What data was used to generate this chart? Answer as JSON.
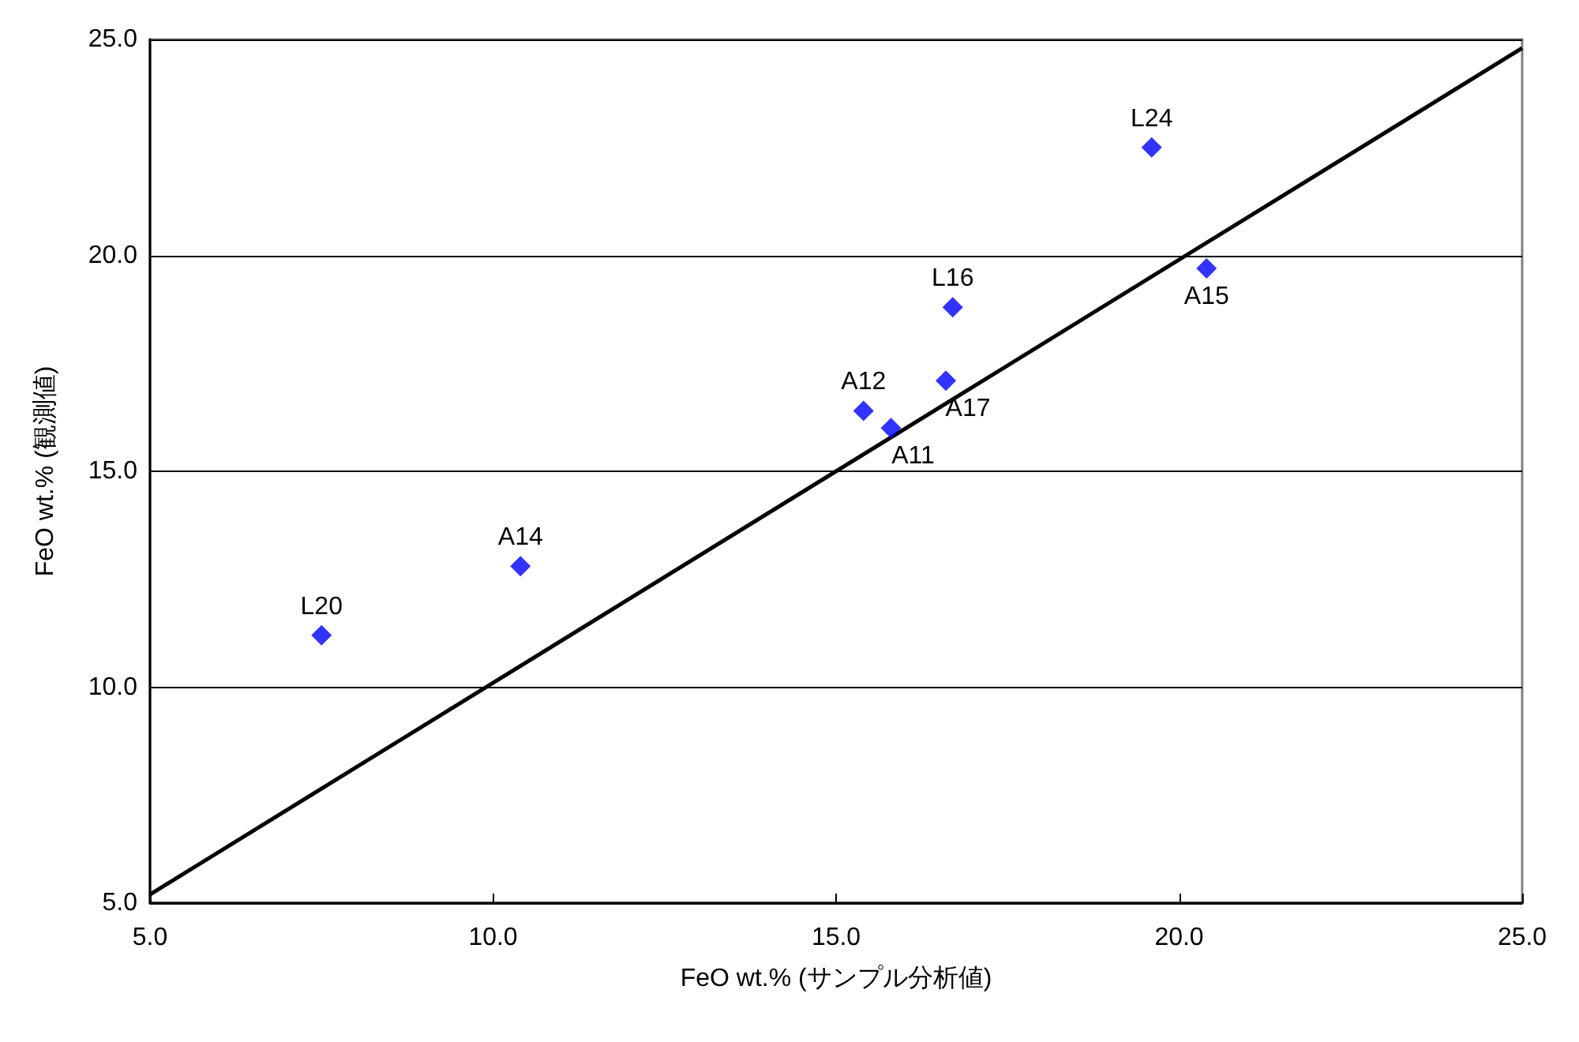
{
  "chart_data": {
    "type": "scatter",
    "xlabel": "FeO wt.% (サンプル分析値)",
    "ylabel": "FeO wt.% (観測値)",
    "xlim": [
      5,
      25
    ],
    "xticks": [
      {
        "value": 5,
        "label": "5.0"
      },
      {
        "value": 10,
        "label": "10.0"
      },
      {
        "value": 15,
        "label": "15.0"
      },
      {
        "value": 20,
        "label": "20.0"
      },
      {
        "value": 25,
        "label": "25.0"
      }
    ],
    "ylim": [
      5,
      25
    ],
    "yticks": [
      {
        "value": 5,
        "label": "5.0"
      },
      {
        "value": 10,
        "label": "10.0"
      },
      {
        "value": 15,
        "label": "15.0"
      },
      {
        "value": 20,
        "label": "20.0"
      },
      {
        "value": 25,
        "label": "25.0"
      }
    ],
    "grid": "y",
    "series": [
      {
        "marker": "diamond",
        "color": "#0000ff",
        "x": [
          7.5,
          10.4,
          15.4,
          15.8,
          16.6,
          16.7,
          19.6,
          20.4
        ],
        "values": [
          11.2,
          12.8,
          16.4,
          16.0,
          17.1,
          18.8,
          22.5,
          19.7
        ]
      },
      {
        "type": "line",
        "color": "#000000",
        "x": [
          5,
          25
        ],
        "values": [
          5.2,
          24.8
        ]
      }
    ],
    "annotations": [
      {
        "text": "L20",
        "x": 7.5,
        "y": 11.2
      },
      {
        "text": "A14",
        "x": 10.4,
        "y": 12.8
      },
      {
        "text": "A12",
        "x": 15.4,
        "y": 16.4
      },
      {
        "text": "A11",
        "x": 15.8,
        "y": 16.0
      },
      {
        "text": "A17",
        "x": 16.6,
        "y": 17.1
      },
      {
        "text": "L16",
        "x": 16.7,
        "y": 18.8
      },
      {
        "text": "L24",
        "x": 19.6,
        "y": 22.5
      },
      {
        "text": "A15",
        "x": 20.4,
        "y": 19.7
      }
    ]
  }
}
